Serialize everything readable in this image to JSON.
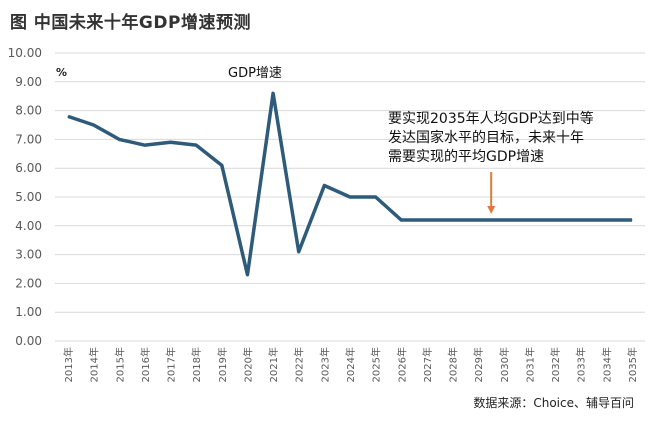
{
  "title": "图  中国未来十年GDP增速预测",
  "source": "数据来源：Choice、辅导百问",
  "chart_data": {
    "type": "line",
    "title": "GDP增速",
    "ylabel": "%",
    "ylim": [
      0,
      10
    ],
    "yticks": [
      "0.00",
      "1.00",
      "2.00",
      "3.00",
      "4.00",
      "5.00",
      "6.00",
      "7.00",
      "8.00",
      "9.00",
      "10.00"
    ],
    "grid": true,
    "categories": [
      "2013年",
      "2014年",
      "2015年",
      "2016年",
      "2017年",
      "2018年",
      "2019年",
      "2020年",
      "2021年",
      "2022年",
      "2023年",
      "2024年",
      "2025年",
      "2026年",
      "2027年",
      "2028年",
      "2029年",
      "2030年",
      "2031年",
      "2032年",
      "2033年",
      "2034年",
      "2035年"
    ],
    "series": [
      {
        "name": "GDP增速",
        "values": [
          7.8,
          7.5,
          7.0,
          6.8,
          6.9,
          6.8,
          6.1,
          2.3,
          8.6,
          3.1,
          5.4,
          5.0,
          5.0,
          4.2,
          4.2,
          4.2,
          4.2,
          4.2,
          4.2,
          4.2,
          4.2,
          4.2,
          4.2
        ]
      }
    ],
    "line_color": "#2e5b7a",
    "annotation": [
      "要实现2035年人均GDP达到中等",
      "发达国家水平的目标，未来十年",
      "需要实现的平均GDP增速"
    ],
    "annotation_arrow_color": "#e07b39",
    "annotation_target": "2029年"
  }
}
